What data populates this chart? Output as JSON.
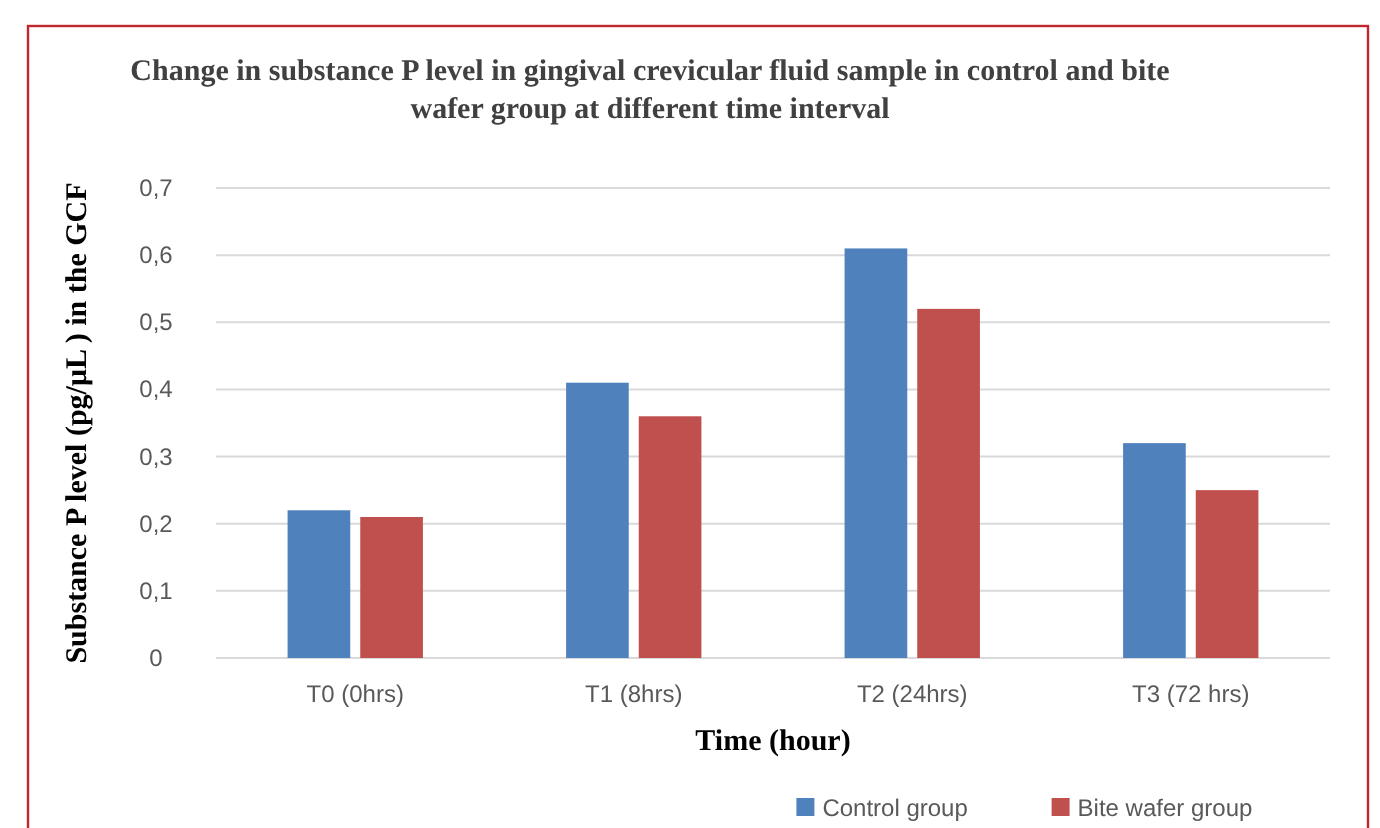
{
  "chart_data": {
    "type": "bar",
    "title": "Change in substance P level in gingival crevicular fluid sample in control and bite wafer group at different time interval",
    "xlabel": "Time (hour)",
    "ylabel": "Substance P level (pg/μL ) in the GCF",
    "categories": [
      "T0 (0hrs)",
      "T1 (8hrs)",
      "T2 (24hrs)",
      "T3 (72 hrs)"
    ],
    "series": [
      {
        "name": "Control group",
        "color": "#4f81bd",
        "values": [
          0.22,
          0.41,
          0.61,
          0.32
        ]
      },
      {
        "name": "Bite wafer group",
        "color": "#c0504d",
        "values": [
          0.21,
          0.36,
          0.52,
          0.25
        ]
      }
    ],
    "ylim": [
      0,
      0.7
    ],
    "yticks": [
      0,
      {
        "value": 0.1,
        "label": "0,1"
      },
      {
        "value": 0.2,
        "label": "0,2"
      },
      {
        "value": 0.3,
        "label": "0,3"
      },
      {
        "value": 0.4,
        "label": "0,4"
      },
      {
        "value": 0.5,
        "label": "0,5"
      },
      {
        "value": 0.6,
        "label": "0,6"
      },
      {
        "value": 0.7,
        "label": "0,7"
      }
    ],
    "grid": "y",
    "legend": "bottom right"
  }
}
